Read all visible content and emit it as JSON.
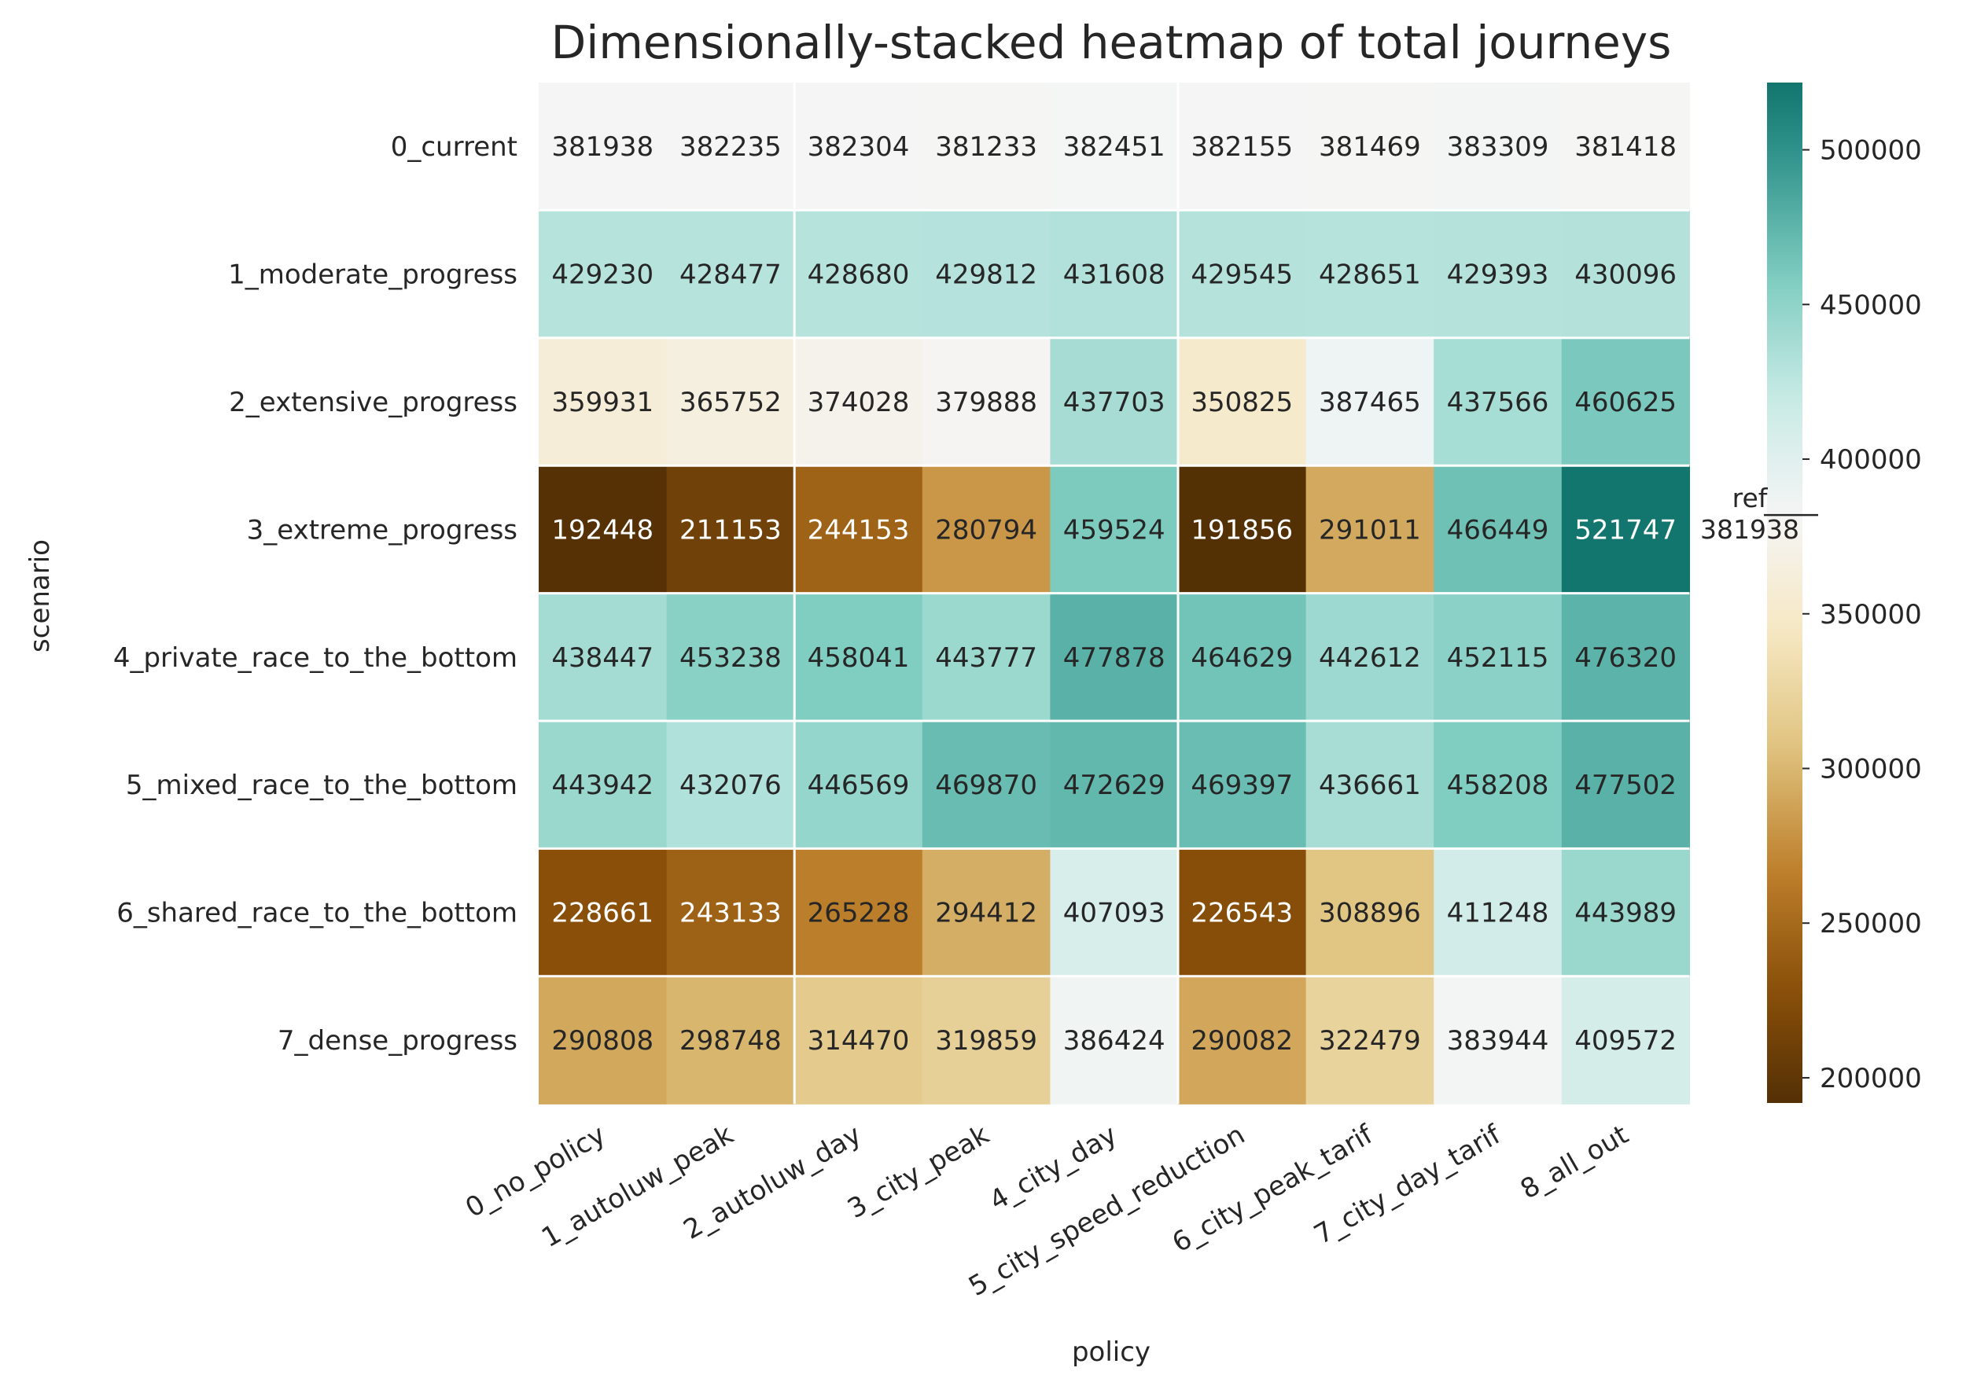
{
  "chart_data": {
    "type": "heatmap",
    "title": "Dimensionally-stacked heatmap of total journeys",
    "xlabel": "policy",
    "ylabel": "scenario",
    "x": [
      "0_no_policy",
      "1_autoluw_peak",
      "2_autoluw_day",
      "3_city_peak",
      "4_city_day",
      "5_city_speed_reduction",
      "6_city_peak_tarif",
      "7_city_day_tarif",
      "8_all_out"
    ],
    "y": [
      "0_current",
      "1_moderate_progress",
      "2_extensive_progress",
      "3_extreme_progress",
      "4_private_race_to_the_bottom",
      "5_mixed_race_to_the_bottom",
      "6_shared_race_to_the_bottom",
      "7_dense_progress"
    ],
    "values": [
      [
        381938,
        382235,
        382304,
        381233,
        382451,
        382155,
        381469,
        383309,
        381418
      ],
      [
        429230,
        428477,
        428680,
        429812,
        431608,
        429545,
        428651,
        429393,
        430096
      ],
      [
        359931,
        365752,
        374028,
        379888,
        437703,
        350825,
        387465,
        437566,
        460625
      ],
      [
        192448,
        211153,
        244153,
        280794,
        459524,
        191856,
        291011,
        466449,
        521747
      ],
      [
        438447,
        453238,
        458041,
        443777,
        477878,
        464629,
        442612,
        452115,
        476320
      ],
      [
        443942,
        432076,
        446569,
        469870,
        472629,
        469397,
        436661,
        458208,
        477502
      ],
      [
        228661,
        243133,
        265228,
        294412,
        407093,
        226543,
        308896,
        411248,
        443989
      ],
      [
        290808,
        298748,
        314470,
        319859,
        386424,
        290082,
        322479,
        383944,
        409572
      ]
    ],
    "colormap": "BrBG",
    "vmin": 191856,
    "vmax": 521747,
    "center": 381938,
    "colorbar": {
      "ticks": [
        200000,
        250000,
        300000,
        350000,
        400000,
        450000,
        500000
      ],
      "ref_label": "ref",
      "ref_value": "381938"
    },
    "separator_color": "#ffffff"
  }
}
